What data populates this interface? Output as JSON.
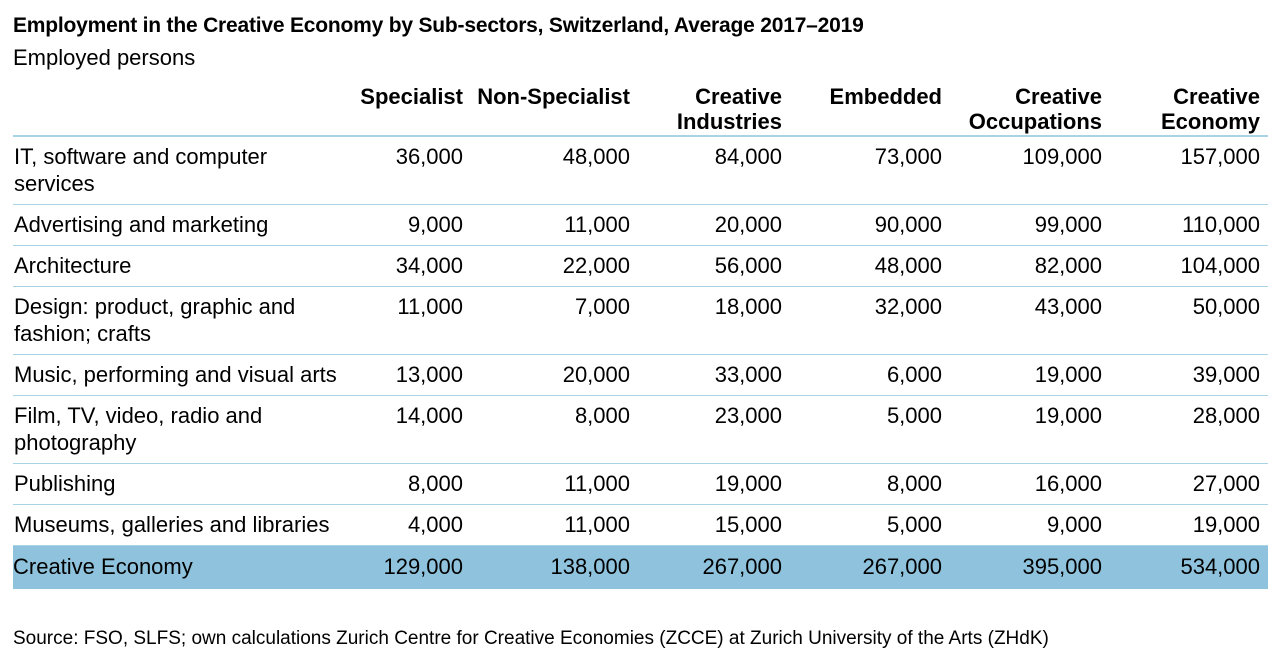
{
  "title": "Employment in the Creative Economy by Sub-sectors, Switzerland, Average 2017–2019",
  "subtitle": "Employed persons",
  "source": "Source: FSO, SLFS; own calculations Zurich Centre for Creative Economies (ZCCE) at Zurich University of the Arts (ZHdK)",
  "colors": {
    "highlight_row_bg": "#8FC3DD",
    "row_border": "#A9D4E6",
    "text": "#000000",
    "background": "#FFFFFF"
  },
  "chart_data": {
    "type": "table",
    "title": "Employment in the Creative Economy by Sub-sectors, Switzerland, Average 2017–2019",
    "unit_label": "Employed persons",
    "columns": [
      "Specialist",
      "Non-Specialist",
      "Creative Industries",
      "Embedded",
      "Creative Occupations",
      "Creative Economy"
    ],
    "rows": [
      {
        "label": "IT, software and computer services",
        "values": [
          "36,000",
          "48,000",
          "84,000",
          "73,000",
          "109,000",
          "157,000"
        ],
        "highlight": false
      },
      {
        "label": "Advertising and marketing",
        "values": [
          "9,000",
          "11,000",
          "20,000",
          "90,000",
          "99,000",
          "110,000"
        ],
        "highlight": false
      },
      {
        "label": "Architecture",
        "values": [
          "34,000",
          "22,000",
          "56,000",
          "48,000",
          "82,000",
          "104,000"
        ],
        "highlight": false
      },
      {
        "label": "Design: product, graphic and fashion; crafts",
        "values": [
          "11,000",
          "7,000",
          "18,000",
          "32,000",
          "43,000",
          "50,000"
        ],
        "highlight": false
      },
      {
        "label": "Music, performing and visual arts",
        "values": [
          "13,000",
          "20,000",
          "33,000",
          "6,000",
          "19,000",
          "39,000"
        ],
        "highlight": false
      },
      {
        "label": "Film, TV, video, radio and photography",
        "values": [
          "14,000",
          "8,000",
          "23,000",
          "5,000",
          "19,000",
          "28,000"
        ],
        "highlight": false
      },
      {
        "label": "Publishing",
        "values": [
          "8,000",
          "11,000",
          "19,000",
          "8,000",
          "16,000",
          "27,000"
        ],
        "highlight": false
      },
      {
        "label": "Museums, galleries and libraries",
        "values": [
          "4,000",
          "11,000",
          "15,000",
          "5,000",
          "9,000",
          "19,000"
        ],
        "highlight": false
      },
      {
        "label": "Creative Economy",
        "values": [
          "129,000",
          "138,000",
          "267,000",
          "267,000",
          "395,000",
          "534,000"
        ],
        "highlight": true
      }
    ]
  }
}
